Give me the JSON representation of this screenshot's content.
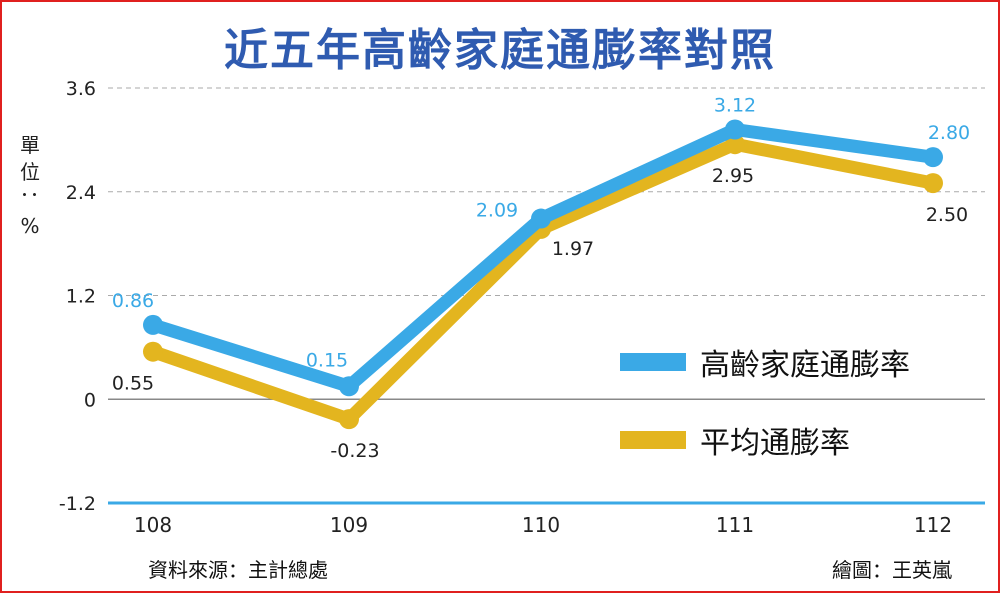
{
  "title": "近五年高齡家庭通膨率對照",
  "unit": "單位：%",
  "source": "資料來源：主計總處",
  "credit": "繪圖：王英嵐",
  "colors": {
    "elderly": "#3aa9e6",
    "average": "#e3b51f",
    "title": "#2f5bb0",
    "frame": "#e0201f"
  },
  "chart_data": {
    "type": "line",
    "categories": [
      "108",
      "109",
      "110",
      "111",
      "112"
    ],
    "yticks": [
      "3.6",
      "2.4",
      "1.2",
      "0",
      "-1.2"
    ],
    "ylim": [
      -1.2,
      3.6
    ],
    "grid": true,
    "legend_position": "right",
    "series": [
      {
        "name": "高齡家庭通膨率",
        "values": [
          0.86,
          0.15,
          2.09,
          3.12,
          2.8
        ],
        "labels": [
          "0.86",
          "0.15",
          "2.09",
          "3.12",
          "2.80"
        ]
      },
      {
        "name": "平均通膨率",
        "values": [
          0.55,
          -0.23,
          1.97,
          2.95,
          2.5
        ],
        "labels": [
          "0.55",
          "-0.23",
          "1.97",
          "2.95",
          "2.50"
        ]
      }
    ]
  }
}
